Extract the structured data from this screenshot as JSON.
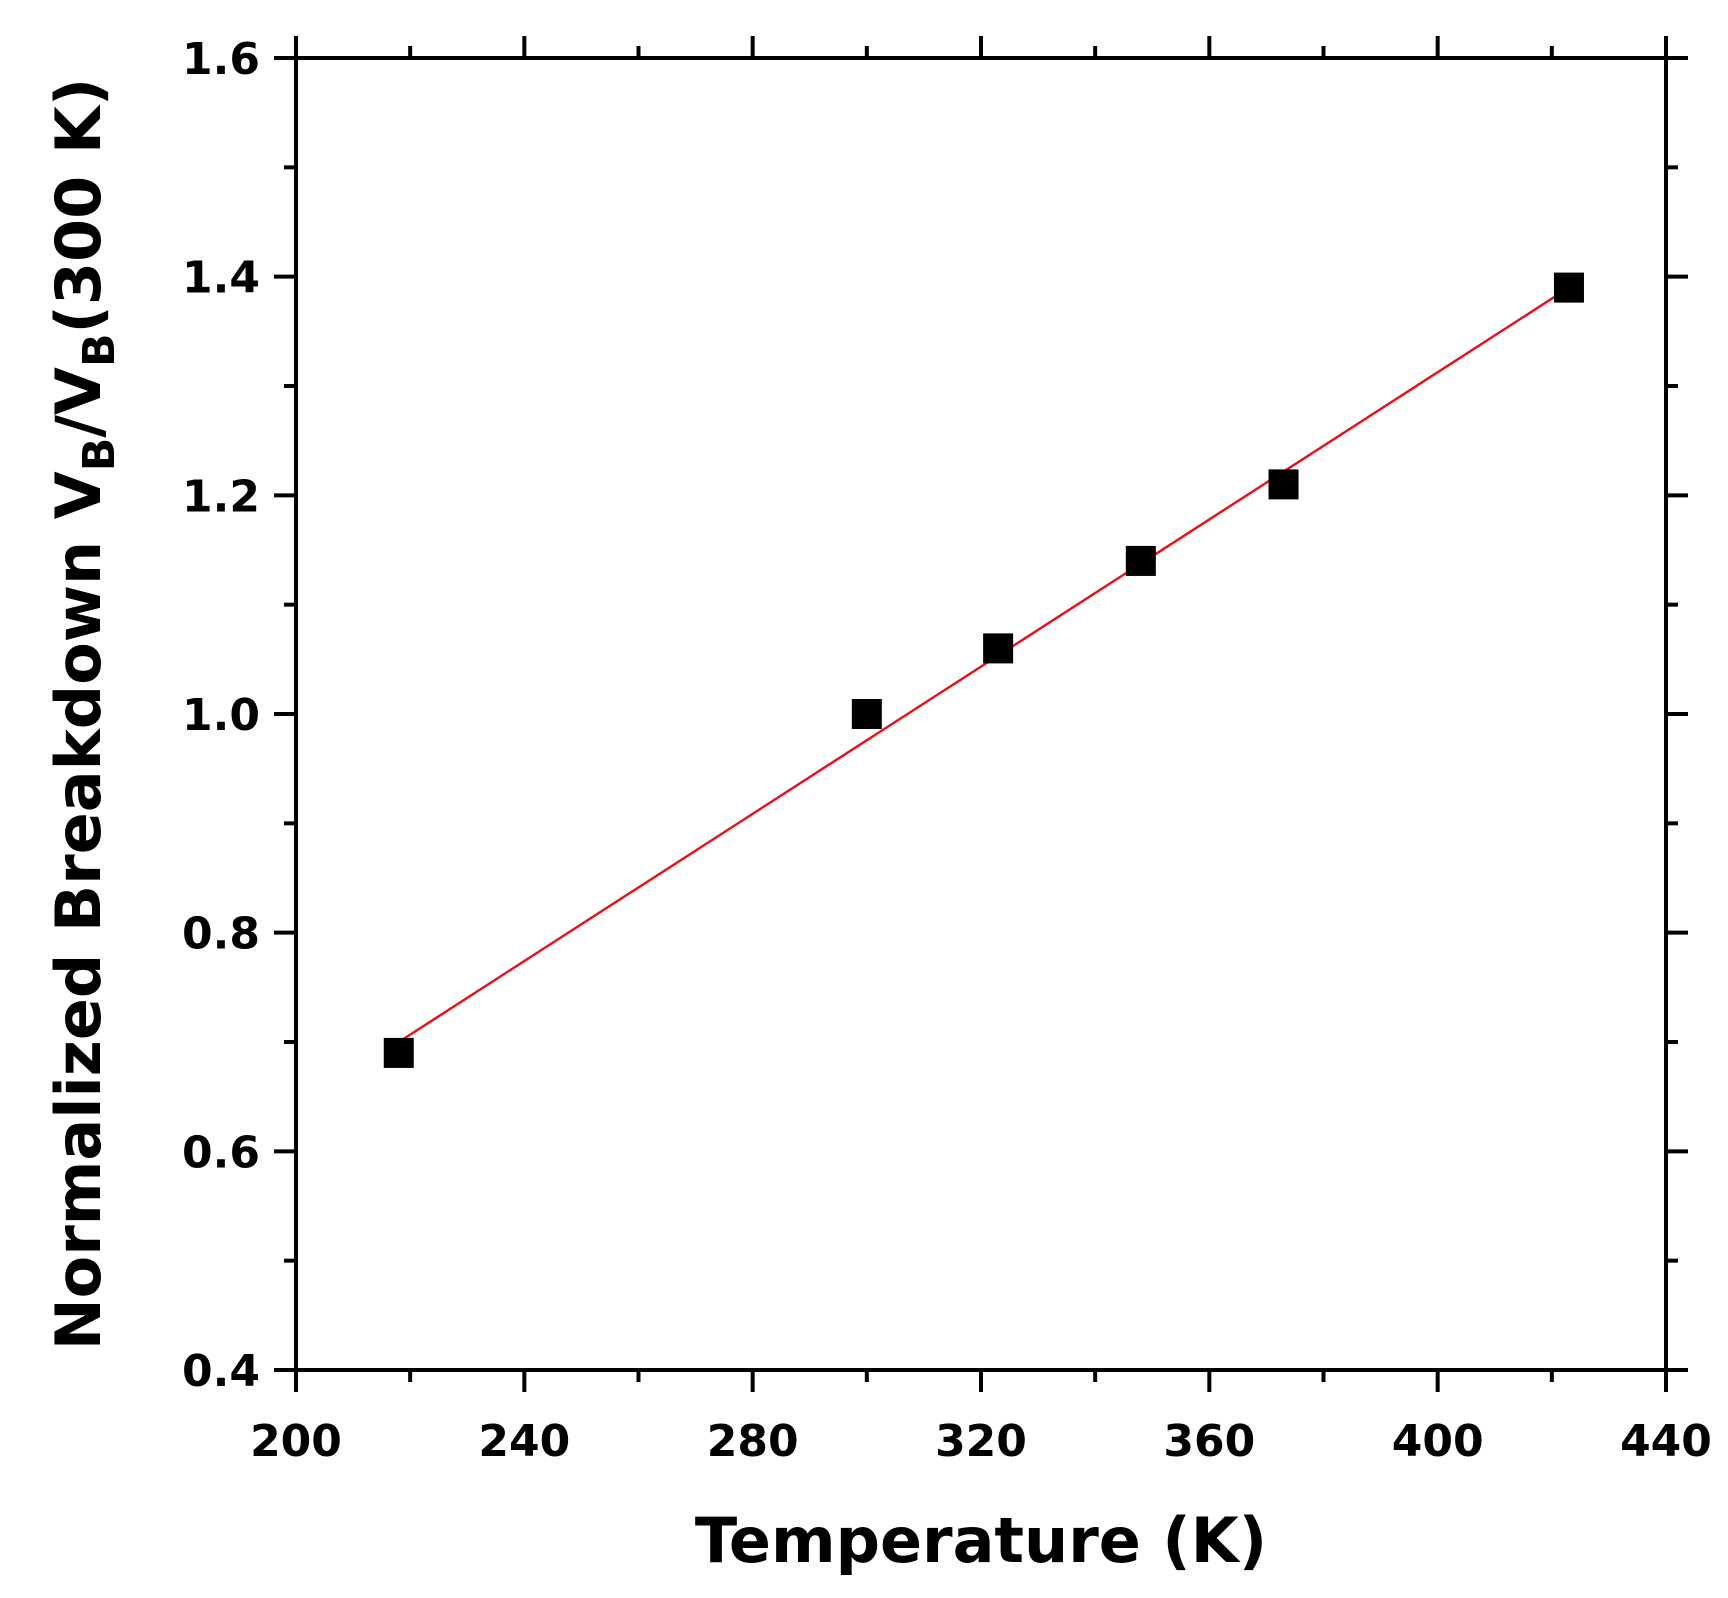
{
  "chart_data": {
    "type": "scatter",
    "title": "",
    "xlabel": "Temperature (K)",
    "ylabel": {
      "main": "Normalized Breakdown V",
      "sub1": "B",
      "mid": "/V",
      "sub2": "B",
      "tail": "(300 K)"
    },
    "xlim": [
      200,
      440
    ],
    "ylim": [
      0.4,
      1.6
    ],
    "x_major_ticks": [
      200,
      240,
      280,
      320,
      360,
      400,
      440
    ],
    "x_tick_labels": [
      "200",
      "240",
      "280",
      "320",
      "360",
      "400",
      "440"
    ],
    "y_major_ticks": [
      0.4,
      0.6,
      0.8,
      1.0,
      1.2,
      1.4,
      1.6
    ],
    "y_tick_labels": [
      "0.4",
      "0.6",
      "0.8",
      "1.0",
      "1.2",
      "1.4",
      "1.6"
    ],
    "grid": false,
    "series": [
      {
        "kind": "points",
        "marker": "square",
        "color": "#000000",
        "x": [
          218,
          300,
          323,
          348,
          373,
          423
        ],
        "y": [
          0.69,
          1.0,
          1.06,
          1.14,
          1.21,
          1.39
        ]
      },
      {
        "kind": "fit-line",
        "color": "#e8121a",
        "x": [
          218,
          423
        ],
        "y": [
          0.7,
          1.39
        ]
      }
    ]
  }
}
